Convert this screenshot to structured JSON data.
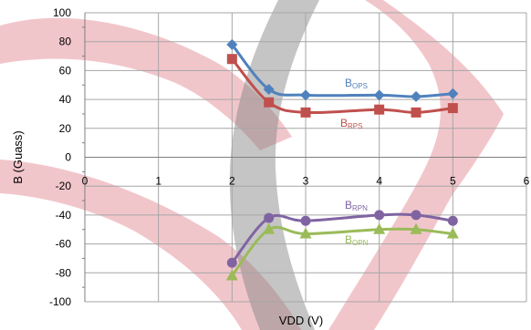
{
  "chart_data": {
    "type": "line",
    "xlabel": "VDD (V)",
    "ylabel": "B (Guass)",
    "xlim": [
      0,
      6
    ],
    "ylim": [
      -100,
      100
    ],
    "x_ticks": [
      "0",
      "1",
      "2",
      "3",
      "4",
      "5",
      "6"
    ],
    "y_ticks": [
      "100",
      "80",
      "60",
      "40",
      "20",
      "0",
      "-20",
      "-40",
      "-60",
      "-80",
      "-100"
    ],
    "grid": true,
    "series": [
      {
        "name_main": "B",
        "name_sub": "OPS",
        "color": "#4f81bd",
        "marker": "diamond",
        "x": [
          2,
          2.5,
          3,
          4,
          4.5,
          5
        ],
        "y": [
          78,
          47,
          43,
          43,
          42,
          44
        ]
      },
      {
        "name_main": "B",
        "name_sub": "RPS",
        "color": "#c0504d",
        "marker": "square",
        "x": [
          2,
          2.5,
          3,
          4,
          4.5,
          5
        ],
        "y": [
          68,
          38,
          31,
          33,
          31,
          34
        ]
      },
      {
        "name_main": "B",
        "name_sub": "RPN",
        "color": "#8064a2",
        "marker": "circle",
        "x": [
          2,
          2.5,
          3,
          4,
          4.5,
          5
        ],
        "y": [
          -73,
          -42,
          -44,
          -40,
          -40,
          -44
        ]
      },
      {
        "name_main": "B",
        "name_sub": "OPN",
        "color": "#9bbb59",
        "marker": "triangle",
        "x": [
          2,
          2.5,
          3,
          4,
          4.5,
          5
        ],
        "y": [
          -82,
          -50,
          -53,
          -50,
          -50,
          -53
        ]
      }
    ]
  }
}
